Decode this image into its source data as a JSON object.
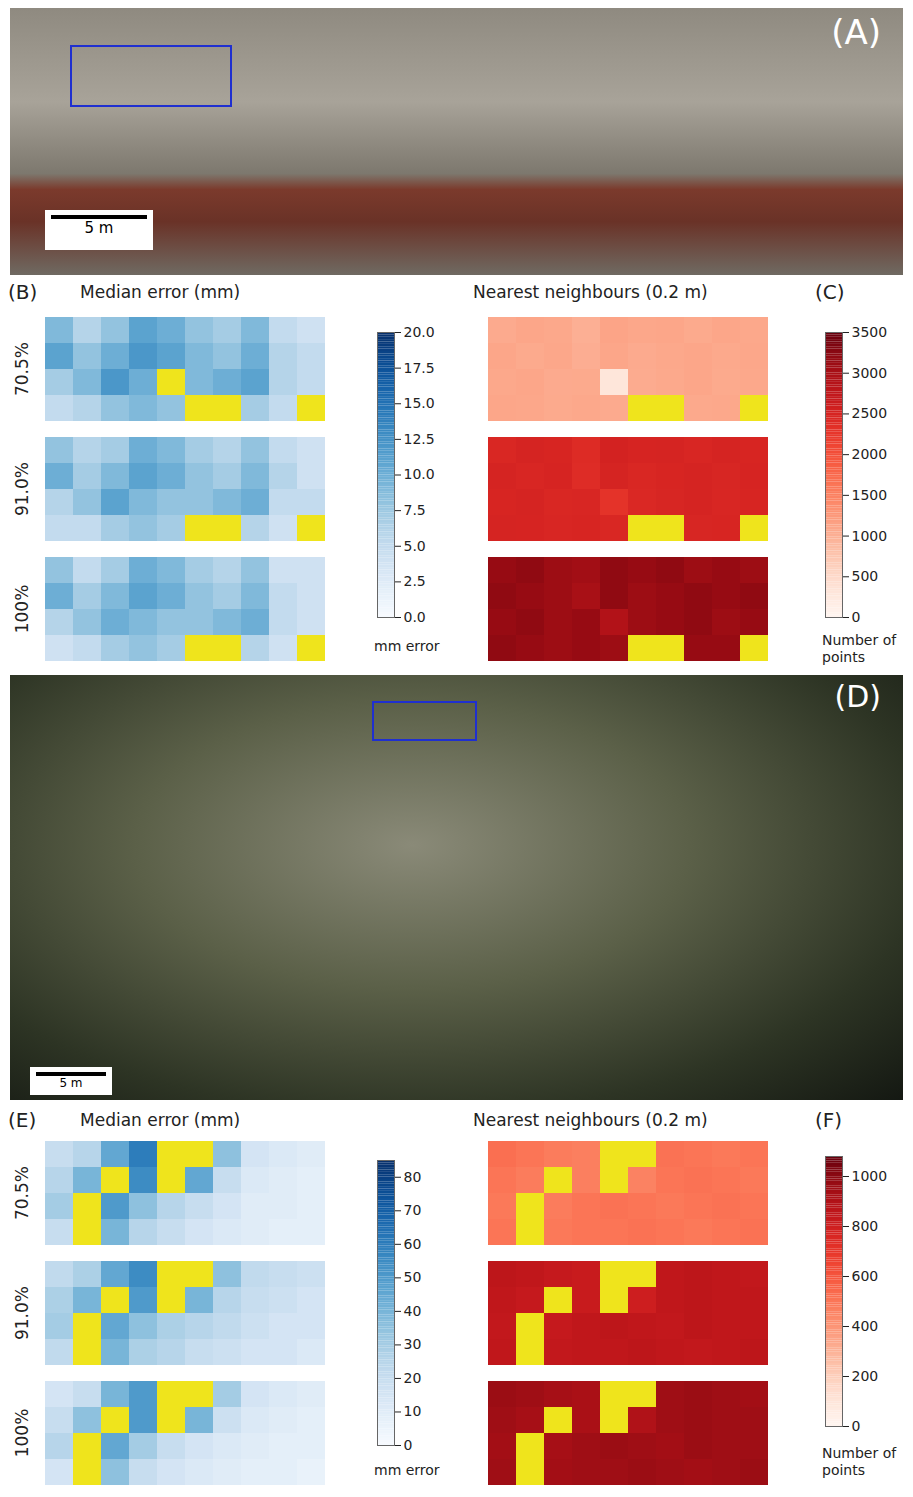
{
  "photos": [
    {
      "label": "(A)",
      "scale_bar": "5 m"
    },
    {
      "label": "(D)",
      "scale_bar": "5 m"
    }
  ],
  "chart_data": [
    {
      "type": "heatmap",
      "label": "(B)",
      "title": "Median error (mm)",
      "color": "blues",
      "rows": [
        "70.5%",
        "91.0%",
        "100%"
      ],
      "cells": [
        [
          [
            9,
            6,
            8,
            11,
            10,
            8,
            7,
            9,
            5,
            4
          ],
          [
            11,
            8,
            10,
            12,
            11,
            9,
            8,
            10,
            6,
            5
          ],
          [
            7,
            9,
            12,
            10,
            null,
            9,
            10,
            11,
            6,
            5
          ],
          [
            5,
            6,
            8,
            9,
            8,
            null,
            null,
            7,
            5,
            null
          ]
        ],
        [
          [
            8,
            6,
            7,
            10,
            9,
            7,
            6,
            8,
            5,
            4
          ],
          [
            10,
            7,
            9,
            11,
            10,
            8,
            7,
            9,
            6,
            4
          ],
          [
            6,
            8,
            11,
            9,
            8,
            8,
            9,
            10,
            5,
            5
          ],
          [
            5,
            5,
            7,
            8,
            7,
            null,
            null,
            6,
            4,
            null
          ]
        ],
        [
          [
            8,
            5,
            7,
            10,
            9,
            7,
            6,
            8,
            4,
            4
          ],
          [
            10,
            7,
            9,
            11,
            10,
            8,
            7,
            9,
            5,
            4
          ],
          [
            6,
            8,
            10,
            9,
            8,
            8,
            9,
            10,
            5,
            4
          ],
          [
            4,
            5,
            7,
            8,
            7,
            null,
            null,
            6,
            4,
            null
          ]
        ]
      ],
      "colorbar": {
        "lim": [
          0,
          20
        ],
        "ticks": [
          {
            "value": 0,
            "label": "0.0"
          },
          {
            "value": 2.5,
            "label": "2.5"
          },
          {
            "value": 5,
            "label": "5.0"
          },
          {
            "value": 7.5,
            "label": "7.5"
          },
          {
            "value": 10,
            "label": "10.0"
          },
          {
            "value": 12.5,
            "label": "12.5"
          },
          {
            "value": 15,
            "label": "15.0"
          },
          {
            "value": 17.5,
            "label": "17.5"
          },
          {
            "value": 20,
            "label": "20.0"
          }
        ],
        "label": "mm error"
      }
    },
    {
      "type": "heatmap",
      "label": "(C)",
      "title": "Nearest neighbours (0.2 m)",
      "color": "reds",
      "cells": [
        [
          [
            1050,
            1100,
            1080,
            1000,
            1120,
            1090,
            1100,
            1060,
            1100,
            1080
          ],
          [
            1100,
            1060,
            1090,
            1020,
            1100,
            1050,
            1080,
            1100,
            1070,
            1090
          ],
          [
            1080,
            1100,
            1050,
            1060,
            300,
            1040,
            1070,
            1100,
            1060,
            1080
          ],
          [
            1100,
            1090,
            1060,
            1080,
            1050,
            null,
            null,
            1070,
            1080,
            null
          ]
        ],
        [
          [
            2450,
            2500,
            2480,
            2400,
            2520,
            2490,
            2500,
            2460,
            2500,
            2480
          ],
          [
            2500,
            2460,
            2490,
            2380,
            2500,
            2450,
            2480,
            2500,
            2470,
            2490
          ],
          [
            2480,
            2500,
            2450,
            2460,
            2300,
            2440,
            2470,
            2500,
            2460,
            2480
          ],
          [
            2500,
            2490,
            2460,
            2480,
            2450,
            null,
            null,
            2470,
            2480,
            null
          ]
        ],
        [
          [
            3150,
            3200,
            3100,
            3050,
            3200,
            3150,
            3200,
            3100,
            3150,
            3100
          ],
          [
            3200,
            3150,
            3100,
            3000,
            3200,
            3100,
            3150,
            3200,
            3150,
            3200
          ],
          [
            3150,
            3200,
            3100,
            3150,
            2900,
            3100,
            3150,
            3200,
            3100,
            3150
          ],
          [
            3200,
            3150,
            3100,
            3150,
            3100,
            null,
            null,
            3150,
            3150,
            null
          ]
        ]
      ],
      "colorbar": {
        "lim": [
          0,
          3500
        ],
        "ticks": [
          0,
          500,
          1000,
          1500,
          2000,
          2500,
          3000,
          3500
        ],
        "label": "Number of points"
      }
    },
    {
      "type": "heatmap",
      "label": "(E)",
      "title": "Median error (mm)",
      "color": "blues",
      "rows": [
        "70.5%",
        "91.0%",
        "100%"
      ],
      "cells": [
        [
          [
            20,
            25,
            45,
            60,
            null,
            null,
            35,
            15,
            12,
            10
          ],
          [
            25,
            40,
            null,
            55,
            null,
            45,
            20,
            12,
            10,
            8
          ],
          [
            30,
            null,
            50,
            35,
            25,
            20,
            15,
            10,
            10,
            8
          ],
          [
            20,
            null,
            40,
            25,
            20,
            15,
            12,
            10,
            8,
            8
          ]
        ],
        [
          [
            22,
            28,
            45,
            55,
            null,
            null,
            35,
            22,
            20,
            18
          ],
          [
            28,
            40,
            null,
            50,
            null,
            40,
            25,
            20,
            18,
            15
          ],
          [
            30,
            null,
            45,
            35,
            28,
            25,
            22,
            18,
            15,
            15
          ],
          [
            22,
            null,
            40,
            28,
            25,
            20,
            18,
            15,
            15,
            12
          ]
        ],
        [
          [
            15,
            20,
            40,
            50,
            null,
            null,
            30,
            15,
            12,
            10
          ],
          [
            20,
            35,
            null,
            50,
            null,
            40,
            18,
            12,
            10,
            8
          ],
          [
            25,
            null,
            45,
            30,
            20,
            15,
            12,
            10,
            8,
            8
          ],
          [
            15,
            null,
            35,
            20,
            15,
            12,
            10,
            8,
            8,
            6
          ]
        ]
      ],
      "colorbar": {
        "lim": [
          0,
          85
        ],
        "ticks": [
          0,
          10,
          20,
          30,
          40,
          50,
          60,
          70,
          80
        ],
        "label": "mm error"
      }
    },
    {
      "type": "heatmap",
      "label": "(F)",
      "title": "Nearest neighbours (0.2 m)",
      "color": "reds",
      "cells": [
        [
          [
            520,
            500,
            480,
            470,
            null,
            null,
            510,
            500,
            490,
            500
          ],
          [
            500,
            480,
            null,
            470,
            null,
            460,
            500,
            510,
            500,
            490
          ],
          [
            490,
            null,
            480,
            500,
            510,
            500,
            490,
            500,
            510,
            500
          ],
          [
            500,
            null,
            490,
            500,
            500,
            510,
            500,
            490,
            500,
            510
          ]
        ],
        [
          [
            860,
            850,
            830,
            820,
            null,
            null,
            850,
            860,
            850,
            840
          ],
          [
            850,
            830,
            null,
            820,
            null,
            800,
            850,
            860,
            850,
            850
          ],
          [
            840,
            null,
            830,
            850,
            860,
            850,
            840,
            860,
            850,
            850
          ],
          [
            850,
            null,
            840,
            850,
            850,
            860,
            850,
            840,
            850,
            860
          ]
        ],
        [
          [
            960,
            950,
            930,
            920,
            null,
            null,
            950,
            960,
            950,
            940
          ],
          [
            950,
            930,
            null,
            920,
            null,
            900,
            950,
            960,
            950,
            950
          ],
          [
            940,
            null,
            930,
            950,
            960,
            950,
            940,
            960,
            950,
            950
          ],
          [
            950,
            null,
            940,
            950,
            950,
            960,
            950,
            940,
            950,
            960
          ]
        ]
      ],
      "colorbar": {
        "lim": [
          0,
          1080
        ],
        "ticks": [
          0,
          200,
          400,
          600,
          800,
          1000
        ],
        "label": "Number of points"
      }
    }
  ]
}
